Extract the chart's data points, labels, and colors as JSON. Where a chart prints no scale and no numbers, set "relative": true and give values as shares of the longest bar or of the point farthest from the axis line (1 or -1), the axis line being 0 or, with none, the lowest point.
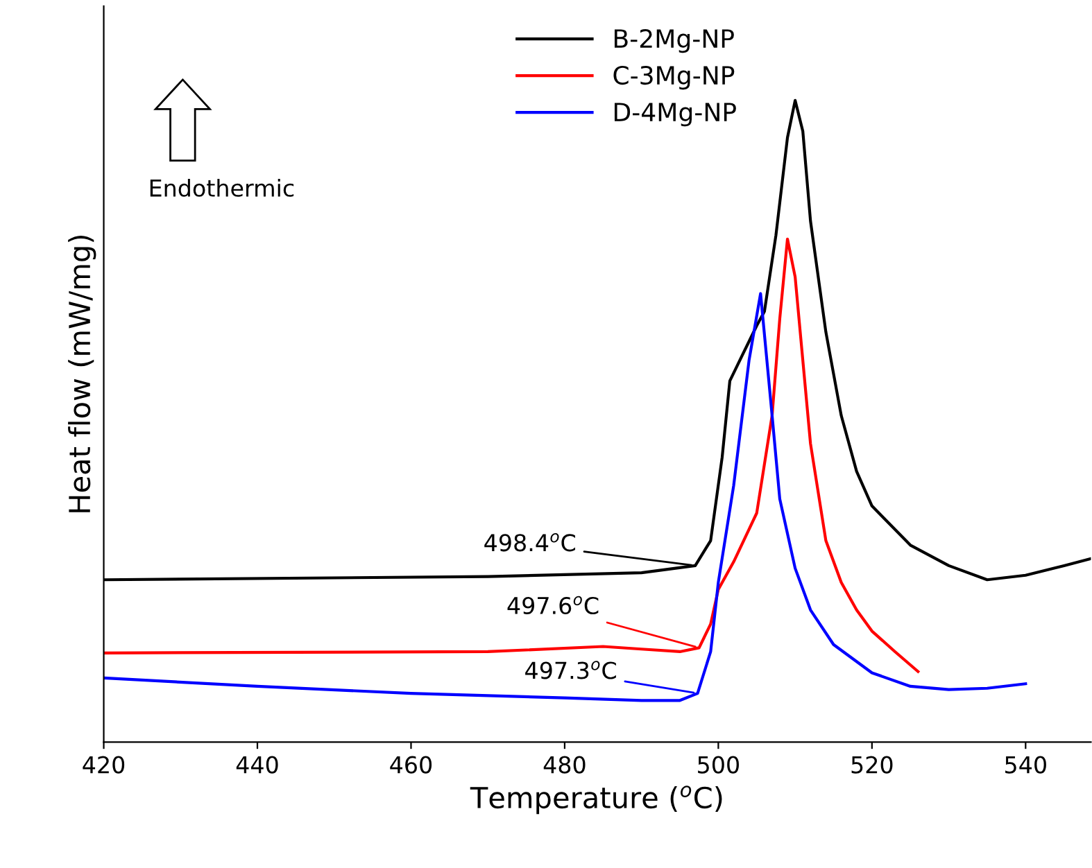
{
  "chart_data": {
    "type": "line",
    "relative": true,
    "xlabel": "Temperature ($^{o}$C)",
    "ylabel": "Heat flow (mW/mg)",
    "xlim": [
      420,
      548.5
    ],
    "xticks": [
      420,
      440,
      460,
      480,
      500,
      520,
      540
    ],
    "grid": false,
    "legend": "top",
    "marker": "none",
    "line_style": "solid",
    "series": [
      {
        "name": "B-2Mg-NP",
        "color": "#000000",
        "x": [
          420,
          470,
          490,
          497,
          499,
          500.5,
          501.5,
          503,
          505,
          506,
          507.5,
          509,
          510,
          511,
          512,
          514,
          516,
          518,
          520,
          525,
          530,
          535,
          540,
          545,
          548.5
        ],
        "values": [
          0.253,
          0.258,
          0.264,
          0.275,
          0.314,
          0.444,
          0.563,
          0.6,
          0.649,
          0.671,
          0.79,
          0.942,
          1.0,
          0.952,
          0.812,
          0.639,
          0.509,
          0.422,
          0.368,
          0.307,
          0.275,
          0.253,
          0.26,
          0.275,
          0.286
        ]
      },
      {
        "name": "C-3Mg-NP",
        "color": "#ff0000",
        "x": [
          420,
          470,
          485,
          490,
          495,
          497.5,
          499,
          500,
          502,
          505,
          507,
          508,
          509,
          510,
          511,
          512,
          514,
          516,
          518,
          520,
          523,
          526
        ],
        "values": [
          0.139,
          0.141,
          0.149,
          0.145,
          0.141,
          0.147,
          0.184,
          0.238,
          0.281,
          0.357,
          0.509,
          0.66,
          0.784,
          0.725,
          0.595,
          0.465,
          0.314,
          0.249,
          0.206,
          0.173,
          0.141,
          0.11
        ]
      },
      {
        "name": "D-4Mg-NP",
        "color": "#0000ff",
        "x": [
          420,
          440,
          460,
          480,
          490,
          495,
          497.3,
          499,
          500,
          502,
          504,
          505.5,
          507,
          508,
          510,
          512,
          515,
          520,
          525,
          530,
          535,
          540
        ],
        "values": [
          0.1,
          0.087,
          0.076,
          0.069,
          0.065,
          0.065,
          0.076,
          0.141,
          0.249,
          0.4,
          0.595,
          0.699,
          0.509,
          0.379,
          0.271,
          0.206,
          0.152,
          0.108,
          0.087,
          0.082,
          0.084,
          0.091
        ]
      }
    ],
    "annotations": [
      {
        "text": "498.4$^{o}$C",
        "x": 497,
        "y": 0.275
      },
      {
        "text": "497.6$^{o}$C",
        "x": 497.5,
        "y": 0.147
      },
      {
        "text": "497.3$^{o}$C",
        "x": 497.3,
        "y": 0.076
      },
      "Endothermic"
    ]
  }
}
